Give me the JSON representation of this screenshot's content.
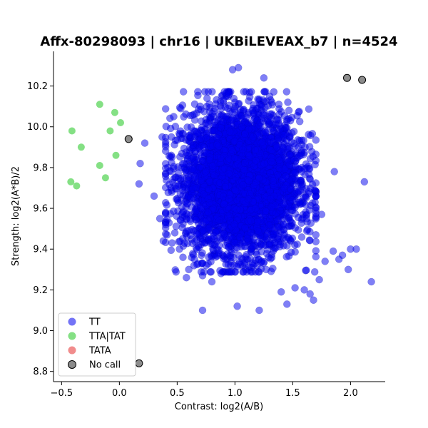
{
  "chart_data": {
    "type": "scatter",
    "title": "Affx-80298093 | chr16 | UKBiLEVEAX_b7 | n=4524",
    "xlabel": "Contrast: log2(A/B)",
    "ylabel": "Strength: log2(A*B)/2",
    "xlim": [
      -0.57,
      2.3
    ],
    "ylim": [
      8.75,
      10.37
    ],
    "xticks": [
      -0.5,
      0.0,
      0.5,
      1.0,
      1.5,
      2.0
    ],
    "xtick_labels": [
      "−0.5",
      "0.0",
      "0.5",
      "1.0",
      "1.5",
      "2.0"
    ],
    "yticks": [
      8.8,
      9.0,
      9.2,
      9.4,
      9.6,
      9.8,
      10.0,
      10.2
    ],
    "ytick_labels": [
      "8.8",
      "9.0",
      "9.2",
      "9.4",
      "9.6",
      "9.8",
      "10.0",
      "10.2"
    ],
    "grid": false,
    "legend_position": "bottom-left",
    "series": [
      {
        "name": "TT",
        "color": "#0000ee",
        "cluster": {
          "n": 4504,
          "center_x": 1.05,
          "center_y": 9.73,
          "sd_x": 0.25,
          "sd_y": 0.17
        },
        "x": [
          0.98,
          1.03,
          1.25,
          1.3,
          0.47,
          0.45,
          0.37,
          0.42,
          0.18,
          0.17,
          0.22,
          0.3,
          0.35,
          0.4,
          0.38,
          0.48,
          0.55,
          0.72,
          0.6,
          0.52,
          0.58,
          0.65,
          0.72,
          0.75,
          0.8,
          0.88,
          1.02,
          1.21,
          1.27,
          1.4,
          1.45,
          1.52,
          1.6,
          1.65,
          1.68,
          1.73,
          1.78,
          1.85,
          1.9,
          1.93,
          1.98,
          2.0,
          2.05,
          2.12,
          2.18,
          1.86,
          1.75,
          1.7,
          1.62,
          1.57,
          1.55,
          1.48,
          1.38,
          1.32,
          1.15,
          1.0,
          0.9,
          0.95
        ],
        "y": [
          10.28,
          10.29,
          10.24,
          10.15,
          10.05,
          9.95,
          9.95,
          9.8,
          9.82,
          9.72,
          9.92,
          9.66,
          9.55,
          9.52,
          9.44,
          9.48,
          9.36,
          9.1,
          9.3,
          9.4,
          9.26,
          9.35,
          9.27,
          9.32,
          9.24,
          9.28,
          9.12,
          9.1,
          9.3,
          9.19,
          9.13,
          9.21,
          9.2,
          9.18,
          9.15,
          9.25,
          9.34,
          9.39,
          9.35,
          9.37,
          9.3,
          9.4,
          9.4,
          9.73,
          9.24,
          9.78,
          9.57,
          9.47,
          9.55,
          9.86,
          9.9,
          10.03,
          10.11,
          10.12,
          10.08,
          10.12,
          10.13,
          10.16
        ]
      },
      {
        "name": "TTA|TAT",
        "color": "#77dd77",
        "x": [
          -0.41,
          -0.17,
          -0.04,
          -0.08,
          0.01,
          -0.33,
          -0.03,
          -0.17,
          -0.12,
          -0.42,
          -0.37
        ],
        "y": [
          9.98,
          10.11,
          10.07,
          9.98,
          10.02,
          9.9,
          9.86,
          9.81,
          9.75,
          9.73,
          9.71
        ]
      },
      {
        "name": "TATA",
        "color": "#f08080",
        "x": [],
        "y": []
      },
      {
        "name": "No call",
        "color": "#808080",
        "x": [
          1.97,
          2.1,
          0.08,
          0.17
        ],
        "y": [
          10.24,
          10.23,
          9.94,
          8.84
        ]
      }
    ]
  }
}
